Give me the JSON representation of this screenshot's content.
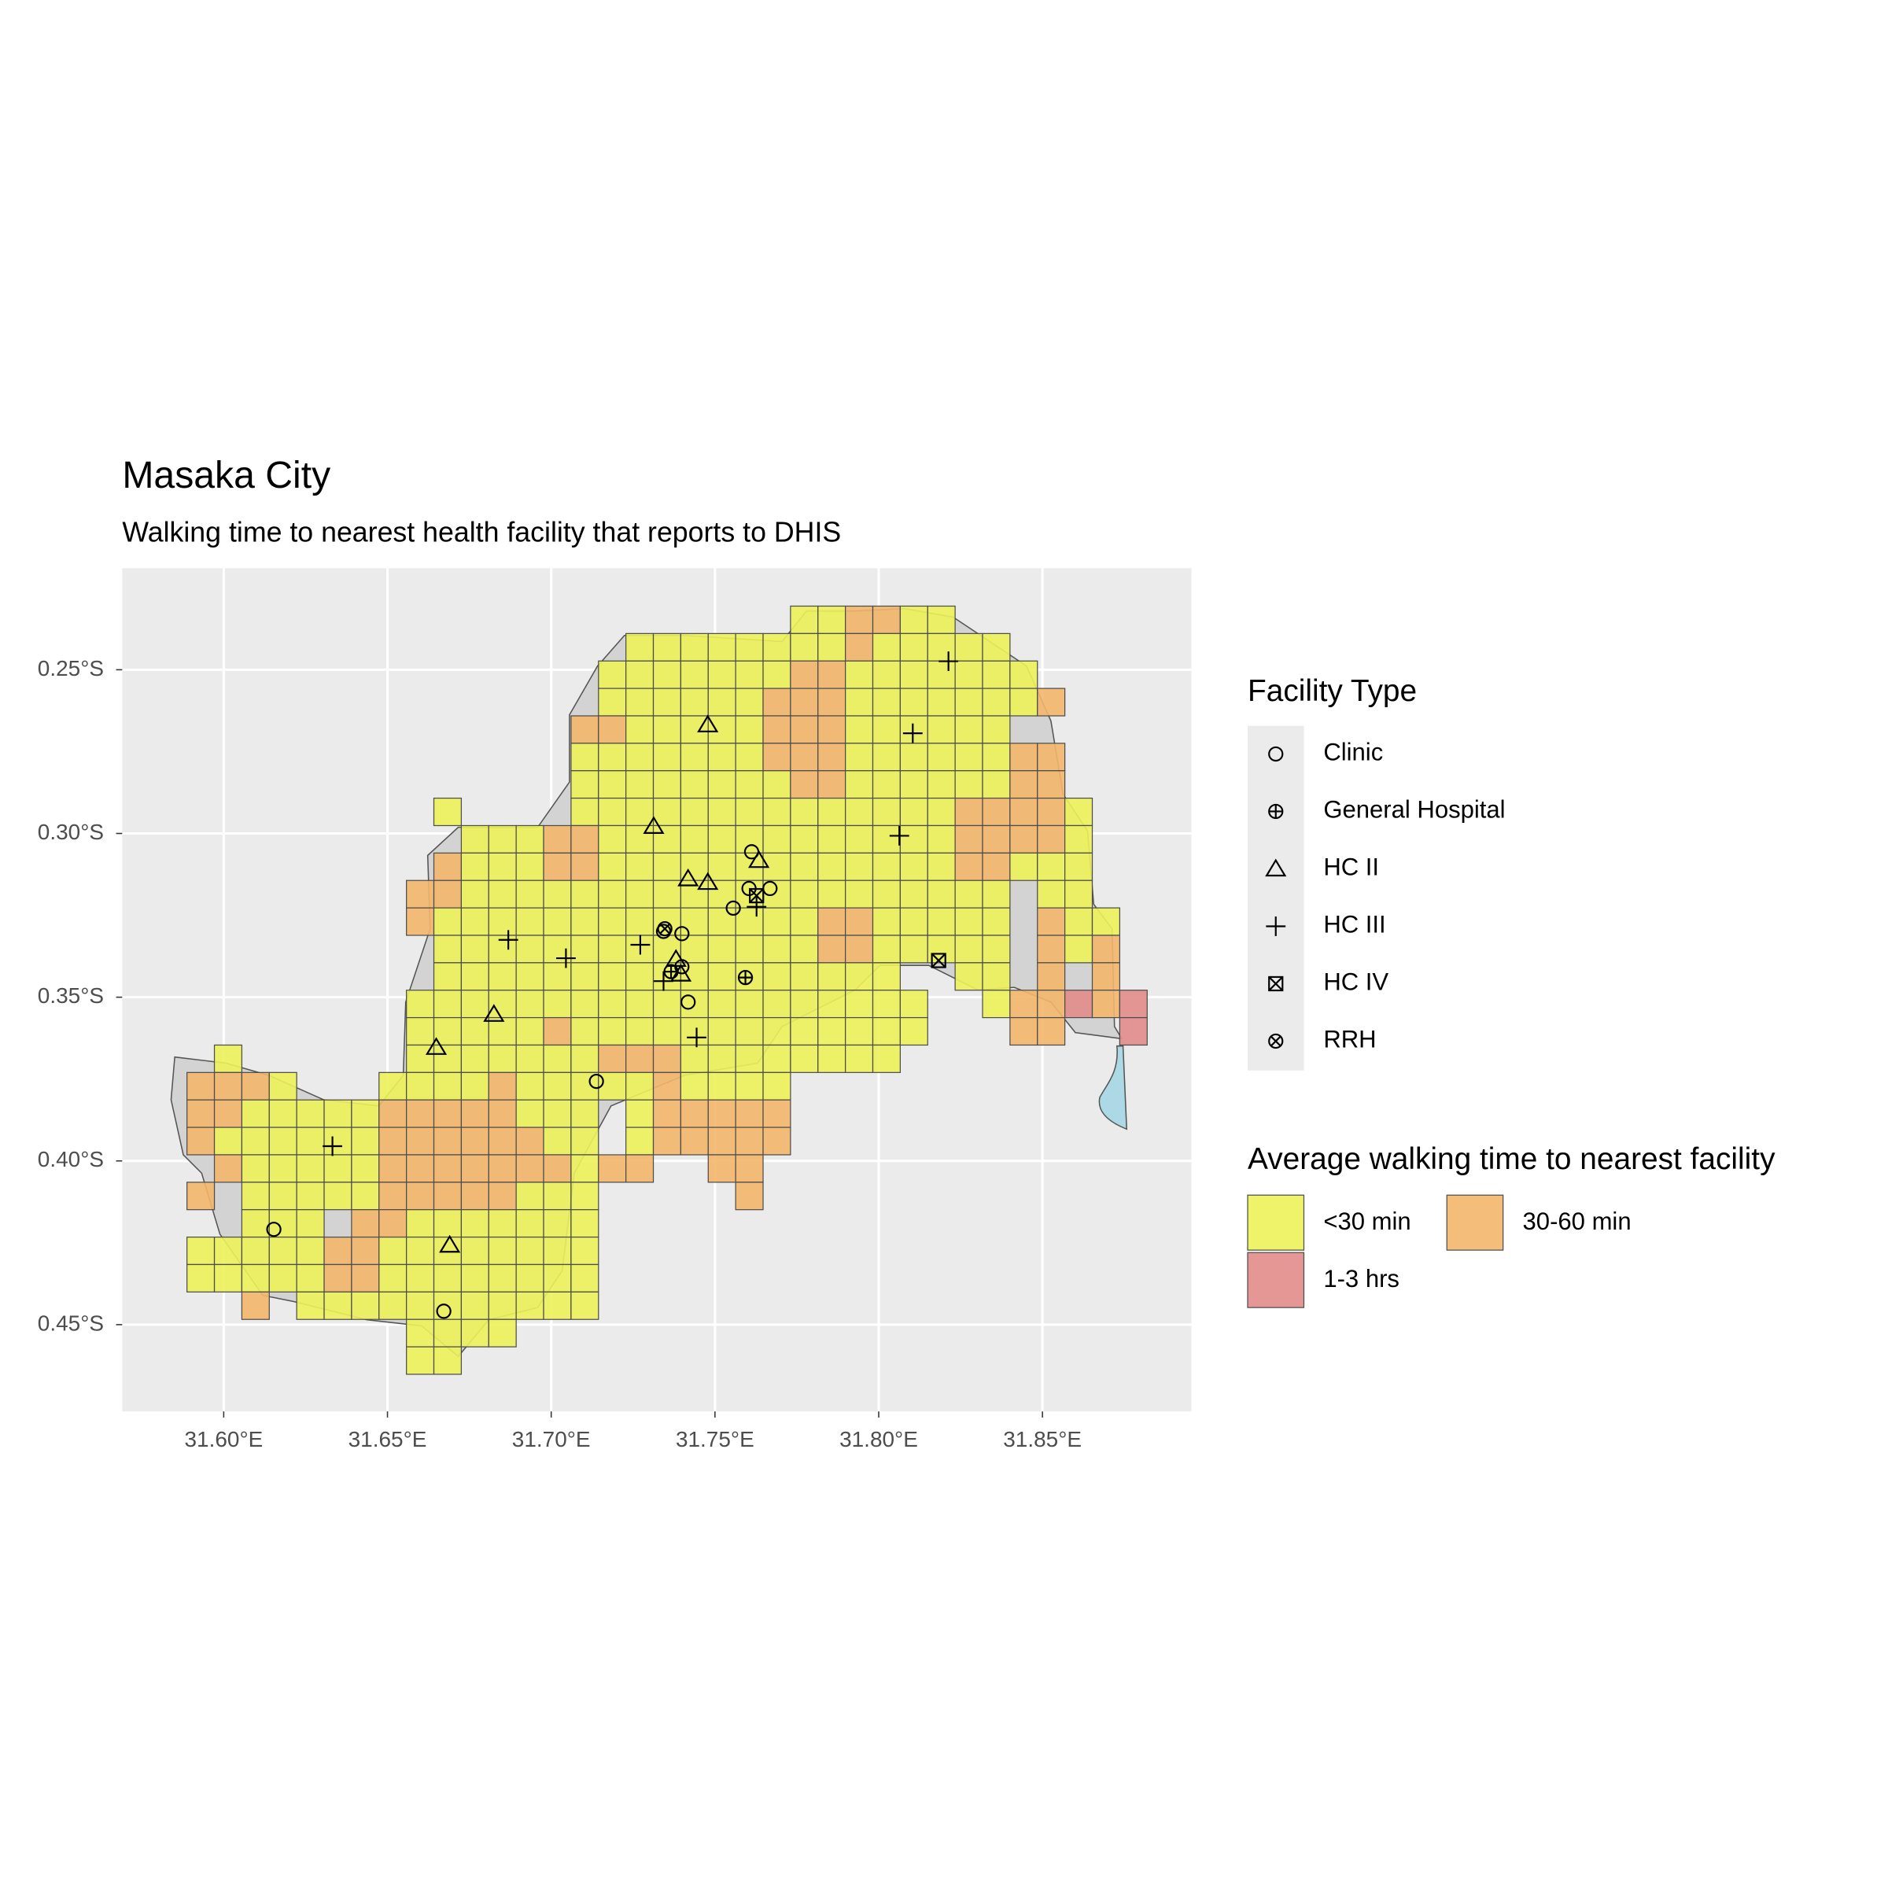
{
  "title": "Masaka City",
  "subtitle": "Walking time to nearest health facility that reports to DHIS",
  "map": {
    "xlim": [
      31.569,
      31.8955
    ],
    "ylim": [
      -0.4765,
      -0.219
    ],
    "xticks": [
      {
        "value": 31.6,
        "label": "31.60°E"
      },
      {
        "value": 31.65,
        "label": "31.65°E"
      },
      {
        "value": 31.7,
        "label": "31.70°E"
      },
      {
        "value": 31.75,
        "label": "31.75°E"
      },
      {
        "value": 31.8,
        "label": "31.80°E"
      },
      {
        "value": 31.85,
        "label": "31.85°E"
      }
    ],
    "yticks": [
      {
        "value": -0.25,
        "label": "0.25°S"
      },
      {
        "value": -0.3,
        "label": "0.30°S"
      },
      {
        "value": -0.35,
        "label": "0.35°S"
      },
      {
        "value": -0.4,
        "label": "0.40°S"
      },
      {
        "value": -0.45,
        "label": "0.45°S"
      }
    ],
    "grid": true
  },
  "facility_legend": {
    "title": "Facility Type",
    "types": [
      {
        "name": "Clinic",
        "symbol": "circle"
      },
      {
        "name": "General Hospital",
        "symbol": "circle-plus"
      },
      {
        "name": "HC II",
        "symbol": "triangle"
      },
      {
        "name": "HC III",
        "symbol": "plus"
      },
      {
        "name": "HC IV",
        "symbol": "square-x"
      },
      {
        "name": "RRH",
        "symbol": "circle-x"
      }
    ]
  },
  "time_legend": {
    "title": "Average walking time to nearest facility",
    "categories": [
      {
        "label": "<30 min",
        "color": "#edf25a"
      },
      {
        "label": "30-60 min",
        "color": "#f3b76b"
      },
      {
        "label": "1-3 hrs",
        "color": "#e28c8a"
      }
    ]
  },
  "cells": [
    {
      "start": 22,
      "cells": [
        0,
        0,
        1,
        1,
        0,
        0
      ]
    },
    {
      "start": 16,
      "cells": [
        0,
        0,
        0,
        0,
        0,
        0,
        0,
        0,
        1,
        0,
        0,
        0,
        0,
        0
      ]
    },
    {
      "start": 15,
      "cells": [
        0,
        0,
        0,
        0,
        0,
        0,
        0,
        1,
        1,
        0,
        0,
        0,
        0,
        0,
        0,
        0
      ]
    },
    {
      "start": 15,
      "cells": [
        0,
        0,
        0,
        0,
        0,
        0,
        1,
        1,
        1,
        0,
        0,
        0,
        0,
        0,
        0,
        0,
        1
      ]
    },
    {
      "start": 14,
      "cells": [
        1,
        1,
        0,
        0,
        0,
        0,
        0,
        1,
        1,
        1,
        0,
        0,
        0,
        0,
        0,
        0
      ]
    },
    {
      "start": 14,
      "cells": [
        0,
        0,
        0,
        0,
        0,
        0,
        0,
        1,
        1,
        1,
        0,
        0,
        0,
        0,
        0,
        0,
        1,
        1
      ]
    },
    {
      "start": 14,
      "cells": [
        0,
        0,
        0,
        0,
        0,
        0,
        0,
        0,
        1,
        1,
        0,
        0,
        0,
        0,
        0,
        0,
        1,
        1
      ]
    },
    {
      "start": 9,
      "cells": [
        0,
        null,
        null,
        null,
        null,
        0,
        0,
        0,
        0,
        0,
        0,
        0,
        0,
        0,
        0,
        0,
        0,
        0,
        0,
        1,
        1,
        1,
        1,
        0
      ]
    },
    {
      "start": 10,
      "cells": [
        0,
        0,
        0,
        1,
        1,
        0,
        0,
        0,
        0,
        0,
        0,
        0,
        0,
        0,
        0,
        0,
        0,
        0,
        1,
        1,
        1,
        1,
        0
      ]
    },
    {
      "start": 9,
      "cells": [
        1,
        0,
        0,
        0,
        1,
        1,
        0,
        0,
        0,
        0,
        0,
        0,
        0,
        0,
        0,
        0,
        0,
        0,
        0,
        1,
        1,
        0,
        0,
        0
      ]
    },
    {
      "start": 8,
      "cells": [
        1,
        1,
        0,
        0,
        0,
        0,
        0,
        0,
        0,
        0,
        0,
        0,
        0,
        0,
        0,
        0,
        0,
        0,
        0,
        0,
        0,
        0,
        null,
        0,
        0
      ]
    },
    {
      "start": 8,
      "cells": [
        1,
        0,
        0,
        0,
        0,
        0,
        0,
        0,
        0,
        0,
        0,
        0,
        0,
        0,
        0,
        1,
        1,
        0,
        0,
        0,
        0,
        0,
        null,
        1,
        0,
        0
      ]
    },
    {
      "start": 9,
      "cells": [
        0,
        0,
        0,
        0,
        0,
        0,
        0,
        0,
        0,
        0,
        0,
        0,
        0,
        0,
        1,
        1,
        0,
        0,
        0,
        0,
        0,
        null,
        1,
        0,
        1
      ]
    },
    {
      "start": 9,
      "cells": [
        0,
        0,
        0,
        0,
        0,
        0,
        0,
        0,
        0,
        0,
        0,
        0,
        0,
        0,
        0,
        0,
        0,
        null,
        null,
        0,
        0,
        null,
        1,
        null,
        1
      ]
    },
    {
      "start": 8,
      "cells": [
        0,
        0,
        0,
        0,
        0,
        0,
        0,
        0,
        0,
        0,
        0,
        0,
        0,
        0,
        0,
        0,
        0,
        0,
        0,
        null,
        null,
        0,
        1,
        1,
        2,
        1,
        2
      ]
    },
    {
      "start": 8,
      "cells": [
        0,
        0,
        0,
        0,
        0,
        1,
        0,
        0,
        0,
        0,
        0,
        0,
        0,
        0,
        0,
        0,
        0,
        0,
        0,
        null,
        null,
        null,
        1,
        1,
        null,
        null,
        2
      ]
    },
    {
      "start": 1,
      "cells": [
        0,
        null,
        null,
        null,
        null,
        null,
        null,
        0,
        0,
        0,
        0,
        0,
        0,
        0,
        1,
        1,
        1,
        0,
        0,
        0,
        0,
        0,
        0,
        0,
        0
      ]
    },
    {
      "start": 0,
      "cells": [
        1,
        1,
        1,
        0,
        null,
        null,
        null,
        0,
        0,
        0,
        0,
        1,
        0,
        0,
        0,
        0,
        0,
        1,
        0,
        0,
        0,
        0
      ]
    },
    {
      "start": 0,
      "cells": [
        1,
        1,
        0,
        0,
        0,
        0,
        0,
        1,
        1,
        1,
        1,
        1,
        0,
        0,
        0,
        null,
        0,
        1,
        1,
        1,
        1,
        1
      ]
    },
    {
      "start": 0,
      "cells": [
        1,
        0,
        0,
        0,
        0,
        0,
        0,
        1,
        1,
        1,
        1,
        1,
        1,
        0,
        0,
        null,
        0,
        1,
        1,
        1,
        1,
        1
      ]
    },
    {
      "start": 1,
      "cells": [
        1,
        0,
        0,
        0,
        0,
        0,
        1,
        1,
        1,
        1,
        1,
        1,
        1,
        0,
        1,
        1,
        null,
        null,
        1,
        1
      ]
    },
    {
      "start": 0,
      "cells": [
        1,
        null,
        0,
        0,
        0,
        0,
        0,
        1,
        1,
        1,
        1,
        1,
        0,
        0,
        0,
        null,
        null,
        null,
        null,
        null,
        1
      ]
    },
    {
      "start": 2,
      "cells": [
        0,
        0,
        0,
        null,
        1,
        1,
        0,
        0,
        0,
        0,
        0,
        0,
        0
      ]
    },
    {
      "start": 0,
      "cells": [
        0,
        0,
        0,
        0,
        0,
        1,
        1,
        0,
        0,
        0,
        0,
        0,
        0,
        0,
        0
      ]
    },
    {
      "start": 0,
      "cells": [
        0,
        0,
        0,
        0,
        0,
        1,
        1,
        0,
        0,
        0,
        0,
        0,
        0,
        0,
        0
      ]
    },
    {
      "start": 2,
      "cells": [
        1,
        null,
        0,
        0,
        0,
        0,
        0,
        0,
        0,
        0,
        0,
        0,
        0
      ]
    },
    {
      "start": 8,
      "cells": [
        0,
        0,
        0,
        0
      ]
    },
    {
      "start": 8,
      "cells": [
        0,
        0
      ]
    }
  ],
  "facilities": [
    {
      "type": 0,
      "lon": 31.6153,
      "lat": -0.4209
    },
    {
      "type": 0,
      "lon": 31.6672,
      "lat": -0.4459
    },
    {
      "type": 0,
      "lon": 31.7138,
      "lat": -0.3757
    },
    {
      "type": 0,
      "lon": 31.7399,
      "lat": -0.3306
    },
    {
      "type": 0,
      "lon": 31.7343,
      "lat": -0.3299
    },
    {
      "type": 0,
      "lon": 31.7418,
      "lat": -0.3515
    },
    {
      "type": 0,
      "lon": 31.7556,
      "lat": -0.3228
    },
    {
      "type": 0,
      "lon": 31.7612,
      "lat": -0.3056
    },
    {
      "type": 0,
      "lon": 31.7604,
      "lat": -0.3168
    },
    {
      "type": 0,
      "lon": 31.7668,
      "lat": -0.3168
    },
    {
      "type": 0,
      "lon": 31.7399,
      "lat": -0.3407
    },
    {
      "type": 1,
      "lon": 31.7593,
      "lat": -0.344
    },
    {
      "type": 1,
      "lon": 31.7366,
      "lat": -0.3422
    },
    {
      "type": 2,
      "lon": 31.7478,
      "lat": -0.2668
    },
    {
      "type": 2,
      "lon": 31.7313,
      "lat": -0.2978
    },
    {
      "type": 2,
      "lon": 31.7418,
      "lat": -0.3138
    },
    {
      "type": 2,
      "lon": 31.7478,
      "lat": -0.3149
    },
    {
      "type": 2,
      "lon": 31.7634,
      "lat": -0.3082
    },
    {
      "type": 2,
      "lon": 31.6825,
      "lat": -0.3552
    },
    {
      "type": 2,
      "lon": 31.6649,
      "lat": -0.3653
    },
    {
      "type": 2,
      "lon": 31.669,
      "lat": -0.4257
    },
    {
      "type": 2,
      "lon": 31.7381,
      "lat": -0.3384
    },
    {
      "type": 2,
      "lon": 31.7396,
      "lat": -0.3429
    },
    {
      "type": 3,
      "lon": 31.8213,
      "lat": -0.2474
    },
    {
      "type": 3,
      "lon": 31.8104,
      "lat": -0.2694
    },
    {
      "type": 3,
      "lon": 31.8063,
      "lat": -0.3007
    },
    {
      "type": 3,
      "lon": 31.6869,
      "lat": -0.3325
    },
    {
      "type": 3,
      "lon": 31.7045,
      "lat": -0.3381
    },
    {
      "type": 3,
      "lon": 31.7272,
      "lat": -0.334
    },
    {
      "type": 3,
      "lon": 31.7343,
      "lat": -0.3451
    },
    {
      "type": 3,
      "lon": 31.7444,
      "lat": -0.3623
    },
    {
      "type": 3,
      "lon": 31.7627,
      "lat": -0.3224
    },
    {
      "type": 3,
      "lon": 31.6332,
      "lat": -0.3955
    },
    {
      "type": 4,
      "lon": 31.8183,
      "lat": -0.3388
    },
    {
      "type": 4,
      "lon": 31.7627,
      "lat": -0.319
    },
    {
      "type": 5,
      "lon": 31.7347,
      "lat": -0.3291
    }
  ]
}
